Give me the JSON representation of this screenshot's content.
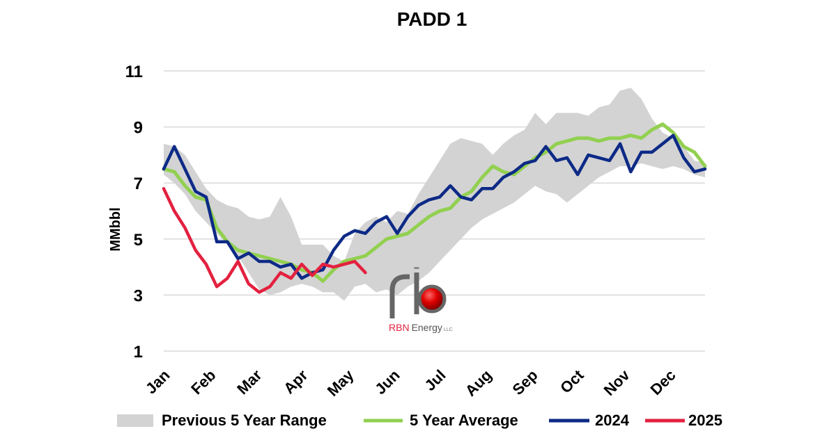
{
  "chart_data": {
    "type": "line",
    "title": "PADD 1",
    "ylabel": "MMbbl",
    "xlabel": "",
    "ylim": [
      1,
      11
    ],
    "yticks": [
      1,
      3,
      5,
      7,
      9,
      11
    ],
    "grid": true,
    "x_tick_labels": [
      "Jan",
      "Feb",
      "Mar",
      "Apr",
      "May",
      "Jun",
      "Jul",
      "Aug",
      "Sep",
      "Oct",
      "Nov",
      "Dec"
    ],
    "x_unit": "week of year",
    "x_range": [
      1,
      52
    ],
    "legend_position": "bottom",
    "range_band": {
      "name": "Previous 5 Year Range",
      "color": "#d3d3d3",
      "upper": [
        8.4,
        8.3,
        8.0,
        7.4,
        6.8,
        6.4,
        6.2,
        6.1,
        5.8,
        5.7,
        5.8,
        6.5,
        5.8,
        4.8,
        4.8,
        4.8,
        4.4,
        4.2,
        5.2,
        5.6,
        5.8,
        5.6,
        6.0,
        5.9,
        6.6,
        7.2,
        7.8,
        8.4,
        8.6,
        8.5,
        8.4,
        8.0,
        8.4,
        8.7,
        8.9,
        9.5,
        9.1,
        9.5,
        9.5,
        9.5,
        9.4,
        9.7,
        9.8,
        10.3,
        10.4,
        10.0,
        9.3,
        8.8,
        8.6,
        8.3,
        7.8,
        7.7
      ],
      "lower": [
        7.3,
        7.0,
        6.6,
        6.0,
        5.6,
        5.2,
        4.8,
        4.4,
        3.8,
        3.2,
        3.0,
        3.1,
        3.3,
        3.4,
        3.3,
        3.1,
        3.1,
        2.8,
        3.3,
        3.4,
        3.1,
        3.2,
        3.0,
        3.3,
        3.5,
        3.8,
        4.2,
        4.6,
        5.0,
        5.4,
        5.7,
        5.9,
        6.1,
        6.3,
        6.6,
        6.9,
        6.7,
        6.6,
        6.3,
        6.6,
        6.9,
        7.2,
        7.4,
        7.6,
        7.6,
        7.7,
        7.6,
        7.5,
        7.6,
        7.5,
        7.3,
        7.2
      ]
    },
    "series": [
      {
        "name": "5 Year Average",
        "color": "#92d050",
        "values": [
          7.5,
          7.4,
          6.9,
          6.5,
          6.4,
          5.4,
          4.9,
          4.6,
          4.5,
          4.4,
          4.3,
          4.2,
          4.1,
          3.9,
          3.8,
          3.5,
          3.9,
          4.2,
          4.3,
          4.4,
          4.7,
          5.0,
          5.1,
          5.2,
          5.5,
          5.8,
          6.0,
          6.1,
          6.5,
          6.7,
          7.2,
          7.6,
          7.4,
          7.3,
          7.6,
          7.9,
          8.1,
          8.4,
          8.5,
          8.6,
          8.6,
          8.5,
          8.6,
          8.6,
          8.7,
          8.6,
          8.9,
          9.1,
          8.8,
          8.3,
          8.1,
          7.6
        ]
      },
      {
        "name": "2024",
        "color": "#0d2a86",
        "values": [
          7.5,
          8.3,
          7.5,
          6.7,
          6.5,
          4.9,
          4.9,
          4.3,
          4.5,
          4.2,
          4.2,
          4.0,
          4.1,
          3.6,
          3.8,
          3.9,
          4.6,
          5.1,
          5.3,
          5.2,
          5.6,
          5.8,
          5.2,
          5.8,
          6.2,
          6.4,
          6.5,
          6.9,
          6.5,
          6.4,
          6.8,
          6.8,
          7.2,
          7.4,
          7.7,
          7.8,
          8.3,
          7.8,
          7.9,
          7.3,
          8.0,
          7.9,
          7.8,
          8.4,
          7.4,
          8.1,
          8.1,
          8.4,
          8.7,
          7.9,
          7.4,
          7.5
        ]
      },
      {
        "name": "2025",
        "color": "#e3213f",
        "values": [
          6.8,
          6.0,
          5.4,
          4.6,
          4.1,
          3.3,
          3.6,
          4.2,
          3.4,
          3.1,
          3.3,
          3.8,
          3.6,
          4.1,
          3.7,
          4.1,
          4.0,
          4.1,
          4.2,
          3.8
        ]
      }
    ]
  },
  "logo": {
    "brand": "RBN",
    "name": "Energy",
    "suffix": "LLC"
  }
}
